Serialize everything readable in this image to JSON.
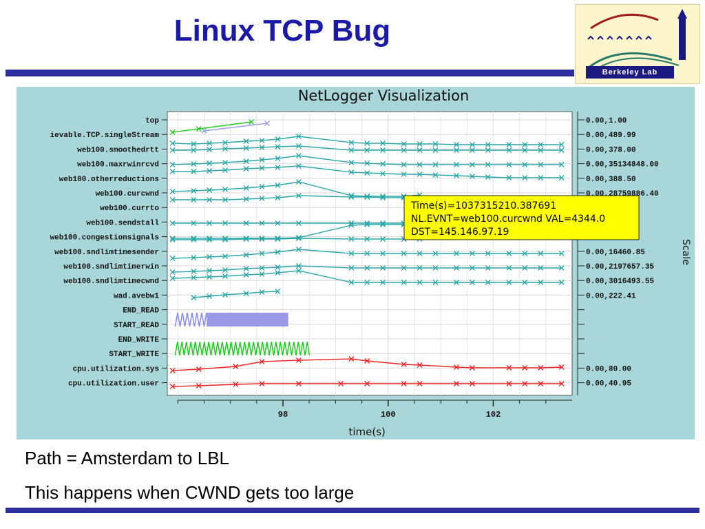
{
  "slide": {
    "title": "Linux TCP Bug",
    "bullets": [
      "Path = Amsterdam to LBL",
      "This happens when CWND gets too large"
    ],
    "logo_text": "Berkeley Lab"
  },
  "chart_data": {
    "type": "line",
    "title": "NetLogger Visualization",
    "xlabel": "time(s)",
    "right_axis_label": "Scale",
    "x_ticks": [
      98,
      100,
      102
    ],
    "xlim": [
      95.8,
      103.5
    ],
    "rows": [
      {
        "name": "top",
        "scale": "0.00,1.00"
      },
      {
        "name": "ievable.TCP.singleStream",
        "scale": "0.00,489.99"
      },
      {
        "name": "web100.smoothedrtt",
        "scale": "0.00,378.00"
      },
      {
        "name": "web100.maxrwinrcvd",
        "scale": "0.00,35134848.00"
      },
      {
        "name": "web100.otherreductions",
        "scale": "0.00,388.50"
      },
      {
        "name": "web100.curcwnd",
        "scale": "0.00,28759886.40"
      },
      {
        "name": "web100.currto",
        "scale": "0.00,"
      },
      {
        "name": "web100.sendstall",
        "scale": ""
      },
      {
        "name": "web100.congestionsignals",
        "scale": ""
      },
      {
        "name": "web100.sndlimtimesender",
        "scale": "0.00,16460.85"
      },
      {
        "name": "web100.sndlimtimerwin",
        "scale": "0.00,2197657.35"
      },
      {
        "name": "web100.sndlimtimecwnd",
        "scale": "0.00,3016493.55"
      },
      {
        "name": "wad.avebw1",
        "scale": "0.00,222.41"
      },
      {
        "name": "END_READ",
        "scale": ""
      },
      {
        "name": "START_READ",
        "scale": ""
      },
      {
        "name": "END_WRITE",
        "scale": ""
      },
      {
        "name": "START_WRITE",
        "scale": ""
      },
      {
        "name": "cpu.utilization.sys",
        "scale": "0.00,80.00"
      },
      {
        "name": "cpu.utilization.user",
        "scale": "0.00,40.95"
      }
    ],
    "series": [
      {
        "color": "#2aa6a6",
        "x": [
          95.9,
          96.3,
          96.6,
          96.9,
          97.3,
          97.6,
          97.9,
          98.3,
          99.3,
          99.6,
          99.9,
          100.3,
          100.6,
          100.9,
          101.3,
          101.6,
          101.9,
          102.3,
          102.6,
          102.9,
          103.3
        ],
        "y": [
          208,
          209,
          208,
          207,
          205,
          204,
          202,
          198,
          207,
          208,
          208,
          209,
          209,
          209,
          210,
          210,
          210,
          210,
          210,
          210,
          210
        ]
      },
      {
        "color": "#2aa6a6",
        "x": [
          95.9,
          96.3,
          96.6,
          96.9,
          97.3,
          97.6,
          97.9,
          98.3,
          99.3,
          99.6,
          99.9,
          100.3,
          100.6,
          100.9,
          101.3,
          101.6,
          101.9,
          102.3,
          102.6,
          102.9,
          103.3
        ],
        "y": [
          218,
          218,
          217,
          216,
          215,
          214,
          213,
          212,
          218,
          218,
          218,
          218,
          218,
          218,
          218,
          218,
          218,
          218,
          218,
          218,
          218
        ]
      },
      {
        "color": "#2aa6a6",
        "x": [
          95.9,
          96.3,
          96.6,
          96.9,
          97.3,
          97.6,
          97.9,
          98.3,
          99.3,
          99.6,
          99.9,
          100.3,
          100.6,
          100.9,
          101.3,
          101.6,
          101.9,
          102.3,
          102.6,
          102.9,
          103.3
        ],
        "y": [
          239,
          238,
          237,
          236,
          234,
          232,
          230,
          226,
          236,
          237,
          238,
          239,
          239,
          239,
          239,
          239,
          239,
          239,
          239,
          239,
          239
        ]
      },
      {
        "color": "#2aa6a6",
        "x": [
          95.9,
          96.3,
          96.6,
          96.9,
          97.3,
          97.6,
          97.9,
          98.3,
          99.3,
          99.6,
          99.9,
          100.3,
          100.6,
          100.9,
          101.3,
          101.6,
          101.9,
          102.3,
          102.6,
          102.9,
          103.3
        ],
        "y": [
          249,
          249,
          248,
          247,
          245,
          244,
          243,
          241,
          250,
          251,
          252,
          253,
          253,
          254,
          255,
          256,
          257,
          258,
          258,
          258,
          258
        ]
      },
      {
        "color": "#2aa6a6",
        "x": [
          95.9,
          96.3,
          96.6,
          96.9,
          97.3,
          97.6,
          97.9,
          98.3,
          99.3,
          99.6,
          99.9,
          100.3,
          100.6
        ],
        "y": [
          278,
          277,
          276,
          275,
          273,
          271,
          269,
          264,
          284,
          285,
          285,
          285,
          283
        ]
      },
      {
        "color": "#2aa6a6",
        "x": [
          95.9,
          96.3,
          96.6,
          96.9,
          97.3,
          97.6,
          97.9,
          98.3,
          99.3,
          99.6,
          99.9,
          100.3,
          100.6
        ],
        "y": [
          290,
          290,
          290,
          290,
          289,
          288,
          287,
          284,
          286,
          286,
          287,
          287,
          287
        ]
      },
      {
        "color": "#2aa6a6",
        "x": [
          95.9,
          96.3,
          96.6,
          96.9,
          97.3,
          97.6,
          97.9,
          98.3,
          99.3,
          99.6,
          99.9,
          100.3,
          100.6
        ],
        "y": [
          324,
          324,
          324,
          324,
          324,
          324,
          324,
          324,
          324,
          324,
          324,
          324,
          324
        ]
      },
      {
        "color": "#2aa6a6",
        "x": [
          95.9,
          96.3,
          96.6,
          96.9,
          97.3,
          97.6,
          97.9,
          98.3,
          99.3,
          99.6,
          99.9,
          100.3,
          100.6
        ],
        "y": [
          346,
          346,
          346,
          346,
          346,
          346,
          346,
          345,
          327,
          326,
          326,
          326,
          326
        ]
      },
      {
        "color": "#2aa6a6",
        "x": [
          95.9,
          96.3,
          96.6,
          96.9,
          97.3,
          97.6,
          97.9,
          98.3,
          99.3,
          99.6,
          99.9,
          100.3,
          100.6
        ],
        "y": [
          348,
          348,
          348,
          348,
          347,
          347,
          347,
          346,
          347,
          347,
          347,
          347,
          347
        ]
      },
      {
        "color": "#2aa6a6",
        "x": [
          95.9,
          96.3,
          96.6,
          96.9,
          97.3,
          97.6,
          97.9,
          98.3,
          99.3,
          99.6,
          99.9,
          100.3,
          100.6,
          100.9,
          101.3,
          101.6,
          101.9,
          102.3,
          102.6,
          102.9,
          103.3
        ],
        "y": [
          375,
          374,
          373,
          372,
          370,
          368,
          366,
          362,
          368,
          368,
          368,
          368,
          368,
          368,
          368,
          368,
          368,
          368,
          368,
          368,
          368
        ]
      },
      {
        "color": "#2aa6a6",
        "x": [
          95.9,
          96.3,
          96.6,
          96.9,
          97.3,
          97.6,
          97.9,
          98.3,
          99.3,
          99.6,
          99.9,
          100.3,
          100.6,
          100.9,
          101.3,
          101.6,
          101.9,
          102.3,
          102.6,
          102.9,
          103.3
        ],
        "y": [
          395,
          394,
          393,
          392,
          390,
          389,
          388,
          386,
          389,
          389,
          389,
          389,
          389,
          389,
          389,
          389,
          389,
          389,
          389,
          389,
          389
        ]
      },
      {
        "color": "#2aa6a6",
        "x": [
          95.9,
          96.3,
          96.6,
          96.9,
          97.3,
          97.6,
          97.9,
          98.3,
          99.3,
          99.6,
          99.9,
          100.3,
          100.6,
          100.9,
          101.3,
          101.6,
          101.9,
          102.3,
          102.6,
          102.9,
          103.3
        ],
        "y": [
          404,
          403,
          402,
          401,
          399,
          398,
          396,
          393,
          410,
          410,
          410,
          410,
          410,
          410,
          410,
          410,
          410,
          410,
          410,
          410,
          410
        ]
      },
      {
        "color": "#2aa6a6",
        "x": [
          96.3,
          96.6,
          96.9,
          97.3,
          97.6,
          97.9
        ],
        "y": [
          432,
          430,
          428,
          426,
          424,
          423
        ]
      },
      {
        "color": "#22cc22",
        "x": [
          95.9,
          96.4,
          97.4
        ],
        "y": [
          192,
          187,
          177
        ]
      },
      {
        "color": "#9999e6",
        "x": [
          96.5,
          97.7
        ],
        "y": [
          190,
          179
        ]
      },
      {
        "color": "#ee2222",
        "x": [
          95.9,
          96.4,
          97.1,
          97.6,
          98.3,
          99.3,
          99.6,
          100.3,
          100.6,
          101.3,
          101.6,
          102.3,
          102.6,
          102.9,
          103.3
        ],
        "y": [
          538,
          536,
          532,
          525,
          523,
          521,
          524,
          529,
          530,
          533,
          534,
          534,
          534,
          534,
          533
        ]
      },
      {
        "color": "#ee2222",
        "x": [
          95.9,
          96.4,
          97.1,
          97.6,
          98.3,
          99.1,
          99.6,
          100.3,
          100.6,
          101.3,
          101.6,
          102.3,
          102.6,
          102.9,
          103.3
        ],
        "y": [
          561,
          560,
          558,
          557,
          557,
          557,
          557,
          557,
          557,
          557,
          557,
          557,
          557,
          557,
          557
        ]
      }
    ],
    "tooltip": [
      "Time(s)=1037315210.387691",
      "NL.EVNT=web100.curcwnd VAL=4344.0",
      "DST=145.146.97.19"
    ]
  }
}
